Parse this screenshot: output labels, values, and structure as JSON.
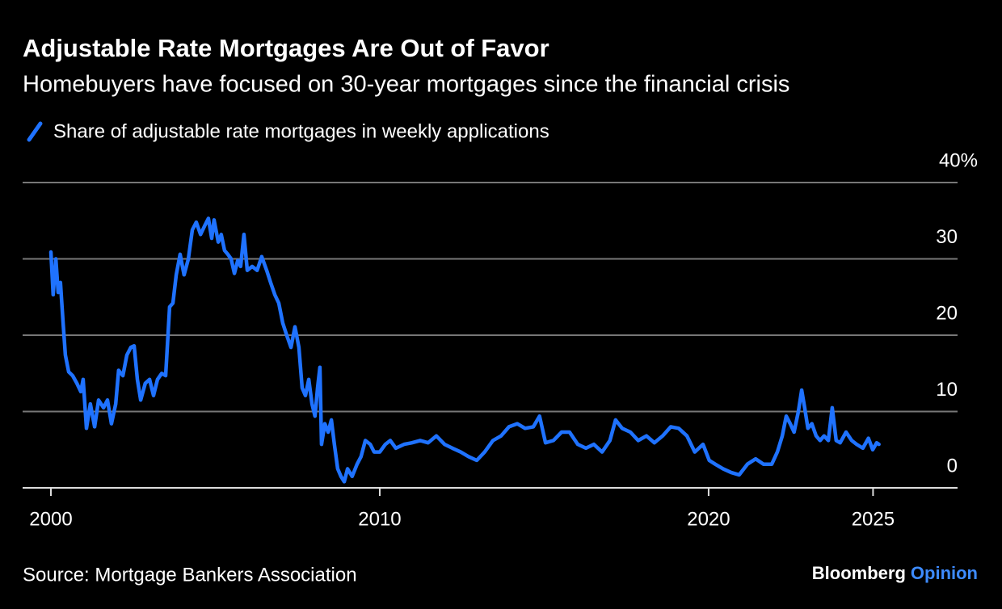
{
  "chart_data": {
    "type": "line",
    "title": "Adjustable Rate Mortgages Are Out of Favor",
    "subtitle": "Homebuyers have focused on 30-year mortgages since the financial crisis",
    "source": "Source: Mortgage Bankers Association",
    "brand": {
      "name": "Bloomberg",
      "suffix": "Opinion"
    },
    "x": [
      2000,
      2000.07,
      2000.15,
      2000.22,
      2000.29,
      2000.37,
      2000.44,
      2000.54,
      2000.66,
      2000.79,
      2000.91,
      2000.98,
      2001.08,
      2001.2,
      2001.33,
      2001.45,
      2001.6,
      2001.72,
      2001.84,
      2001.97,
      2002.06,
      2002.19,
      2002.31,
      2002.43,
      2002.53,
      2002.63,
      2002.73,
      2002.87,
      2003,
      2003.12,
      2003.24,
      2003.37,
      2003.49,
      2003.61,
      2003.71,
      2003.81,
      2003.93,
      2004.05,
      2004.18,
      2004.3,
      2004.42,
      2004.55,
      2004.67,
      2004.79,
      2004.89,
      2004.96,
      2005.09,
      2005.18,
      2005.28,
      2005.38,
      2005.48,
      2005.58,
      2005.68,
      2005.77,
      2005.87,
      2005.97,
      2006.12,
      2006.27,
      2006.41,
      2006.56,
      2006.68,
      2006.81,
      2006.93,
      2007.05,
      2007.17,
      2007.3,
      2007.42,
      2007.54,
      2007.64,
      2007.74,
      2007.84,
      2007.94,
      2008.03,
      2008.11,
      2008.18,
      2008.23,
      2008.33,
      2008.43,
      2008.53,
      2008.62,
      2008.72,
      2008.82,
      2008.92,
      2009.02,
      2009.16,
      2009.31,
      2009.43,
      2009.56,
      2009.71,
      2009.83,
      2010,
      2010.17,
      2010.32,
      2010.49,
      2010.74,
      2010.98,
      2011.23,
      2011.47,
      2011.72,
      2011.97,
      2012.21,
      2012.46,
      2012.7,
      2012.95,
      2013.19,
      2013.44,
      2013.69,
      2013.93,
      2014.18,
      2014.42,
      2014.67,
      2014.86,
      2015.04,
      2015.28,
      2015.53,
      2015.77,
      2016.02,
      2016.27,
      2016.51,
      2016.76,
      2017,
      2017.17,
      2017.37,
      2017.62,
      2017.86,
      2018.11,
      2018.35,
      2018.6,
      2018.85,
      2019.09,
      2019.34,
      2019.58,
      2019.83,
      2020.02,
      2020.2,
      2020.44,
      2020.69,
      2020.93,
      2021.18,
      2021.43,
      2021.67,
      2021.92,
      2022.09,
      2022.24,
      2022.36,
      2022.48,
      2022.6,
      2022.73,
      2022.83,
      2022.92,
      2023.02,
      2023.14,
      2023.27,
      2023.39,
      2023.51,
      2023.64,
      2023.76,
      2023.88,
      2024,
      2024.18,
      2024.35,
      2024.5,
      2024.69,
      2024.86,
      2024.99,
      2025.11,
      2025.18
    ],
    "series": [
      {
        "name": "Share of adjustable rate mortgages in weekly applications",
        "color": "#1f72ff",
        "values": [
          30.9,
          25.3,
          30,
          25.6,
          26.9,
          21.6,
          17.4,
          15.2,
          14.7,
          13.7,
          12.6,
          14.2,
          7.8,
          11,
          8,
          11.5,
          10.5,
          11.5,
          8.4,
          11,
          15.4,
          14.7,
          17.4,
          18.4,
          18.6,
          14.2,
          11.5,
          13.7,
          14.2,
          12.1,
          14.2,
          15,
          14.7,
          23.7,
          24.2,
          27.9,
          30.6,
          27.9,
          30,
          33.8,
          34.8,
          33.2,
          34.3,
          35.3,
          32.7,
          35.1,
          32.2,
          33.2,
          31.1,
          30.6,
          30,
          28.1,
          29.8,
          29,
          33.2,
          28.5,
          29,
          28.5,
          30.3,
          28.5,
          26.9,
          25.3,
          24.2,
          21.6,
          20,
          18.4,
          21.1,
          18.4,
          13.1,
          12.1,
          14.2,
          11,
          9.4,
          13.1,
          15.8,
          5.7,
          8.4,
          7.3,
          8.9,
          5.7,
          2.5,
          1.5,
          0.8,
          2.5,
          1.5,
          3.1,
          4.1,
          6.2,
          5.7,
          4.7,
          4.7,
          5.7,
          6.2,
          5.2,
          5.7,
          5.9,
          6.2,
          5.9,
          6.8,
          5.7,
          5.2,
          4.7,
          4.1,
          3.6,
          4.7,
          6.2,
          6.8,
          8,
          8.4,
          7.8,
          8,
          9.4,
          5.9,
          6.2,
          7.3,
          7.3,
          5.7,
          5.2,
          5.7,
          4.7,
          6.2,
          8.9,
          7.8,
          7.3,
          6.2,
          6.8,
          5.9,
          6.8,
          8,
          7.8,
          6.8,
          4.7,
          5.7,
          3.6,
          3.1,
          2.5,
          2,
          1.7,
          3.1,
          3.8,
          3.1,
          3.1,
          4.7,
          6.8,
          9.4,
          8.4,
          7.3,
          10,
          12.8,
          10.5,
          7.8,
          8.4,
          6.8,
          6.2,
          6.8,
          6.2,
          10.5,
          6.2,
          5.9,
          7.3,
          6.2,
          5.7,
          5.2,
          6.5,
          5,
          5.9,
          5.7
        ]
      }
    ],
    "xlim": [
      1999.14,
      2027.57
    ],
    "xticks": [
      2000,
      2010,
      2020,
      2025
    ],
    "ylim": [
      0,
      40
    ],
    "yticks": [
      0,
      10,
      20,
      30,
      {
        "value": 40,
        "label": "40%"
      }
    ],
    "grid": true
  }
}
